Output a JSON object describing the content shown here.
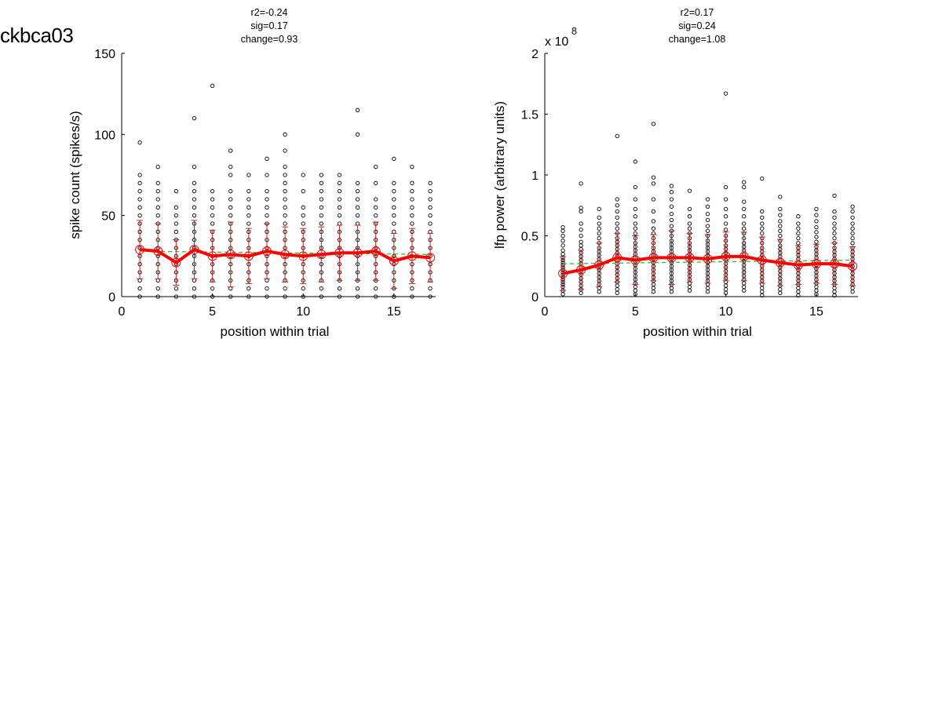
{
  "figure_title": "ckbca03",
  "colors": {
    "points": "#000000",
    "mean_line": "#ff0000",
    "errorbars": "#cc2222",
    "fit_line": "#22bb22"
  },
  "chart_data": [
    {
      "type": "scatter",
      "annotation": [
        "r2=-0.24",
        "sig=0.17",
        "change=0.93"
      ],
      "xlabel": "position within trial",
      "ylabel": "spike count (spikes/s)",
      "exponent_label": "",
      "xlim": [
        0,
        17.3
      ],
      "ylim": [
        0,
        150
      ],
      "xticks": [
        0,
        5,
        10,
        15
      ],
      "xtick_labels": [
        "0",
        "5",
        "10",
        "15"
      ],
      "yticks": [
        0,
        50,
        100,
        150
      ],
      "ytick_labels": [
        "0",
        "50",
        "100",
        "150"
      ],
      "points": [
        {
          "x": 1,
          "y": [
            0,
            5,
            10,
            15,
            20,
            25,
            30,
            35,
            40,
            45,
            50,
            55,
            60,
            65,
            70,
            75,
            95
          ]
        },
        {
          "x": 2,
          "y": [
            0,
            5,
            10,
            15,
            20,
            25,
            30,
            35,
            40,
            45,
            50,
            55,
            60,
            65,
            70,
            80
          ]
        },
        {
          "x": 3,
          "y": [
            0,
            5,
            10,
            15,
            20,
            25,
            30,
            35,
            40,
            45,
            50,
            55,
            65
          ]
        },
        {
          "x": 4,
          "y": [
            0,
            5,
            10,
            15,
            20,
            25,
            30,
            35,
            40,
            45,
            50,
            55,
            60,
            65,
            70,
            80,
            110
          ]
        },
        {
          "x": 5,
          "y": [
            0,
            5,
            10,
            15,
            20,
            25,
            30,
            35,
            40,
            45,
            50,
            55,
            60,
            65,
            130
          ]
        },
        {
          "x": 6,
          "y": [
            0,
            5,
            10,
            15,
            20,
            25,
            30,
            35,
            40,
            45,
            50,
            55,
            60,
            65,
            75,
            80,
            90
          ]
        },
        {
          "x": 7,
          "y": [
            0,
            5,
            10,
            15,
            20,
            25,
            30,
            35,
            40,
            45,
            50,
            55,
            60,
            65,
            75
          ]
        },
        {
          "x": 8,
          "y": [
            0,
            5,
            10,
            15,
            20,
            25,
            30,
            35,
            40,
            45,
            50,
            55,
            60,
            65,
            75,
            85
          ]
        },
        {
          "x": 9,
          "y": [
            0,
            5,
            10,
            15,
            20,
            25,
            30,
            35,
            40,
            45,
            50,
            55,
            60,
            65,
            70,
            75,
            80,
            90,
            100
          ]
        },
        {
          "x": 10,
          "y": [
            0,
            5,
            10,
            15,
            20,
            25,
            30,
            35,
            40,
            45,
            50,
            55,
            65,
            75
          ]
        },
        {
          "x": 11,
          "y": [
            0,
            5,
            10,
            15,
            20,
            25,
            30,
            35,
            40,
            45,
            50,
            55,
            60,
            65,
            70,
            75
          ]
        },
        {
          "x": 12,
          "y": [
            0,
            5,
            10,
            15,
            20,
            25,
            30,
            35,
            40,
            45,
            50,
            55,
            60,
            65,
            70,
            75
          ]
        },
        {
          "x": 13,
          "y": [
            0,
            5,
            10,
            15,
            20,
            25,
            30,
            35,
            40,
            45,
            50,
            55,
            60,
            65,
            70,
            100,
            115
          ]
        },
        {
          "x": 14,
          "y": [
            0,
            5,
            10,
            15,
            20,
            25,
            30,
            35,
            40,
            45,
            50,
            55,
            60,
            70,
            80
          ]
        },
        {
          "x": 15,
          "y": [
            0,
            5,
            10,
            15,
            20,
            25,
            30,
            35,
            40,
            45,
            50,
            55,
            60,
            65,
            70,
            85
          ]
        },
        {
          "x": 16,
          "y": [
            0,
            5,
            10,
            15,
            20,
            25,
            30,
            35,
            40,
            45,
            50,
            55,
            60,
            65,
            70,
            80
          ]
        },
        {
          "x": 17,
          "y": [
            0,
            5,
            10,
            15,
            20,
            25,
            30,
            35,
            40,
            45,
            50,
            55,
            60,
            65,
            70
          ]
        }
      ],
      "mean": [
        29,
        28,
        21,
        29,
        25,
        26,
        25,
        28,
        26,
        25,
        26,
        27,
        27,
        28,
        22,
        25,
        24
      ],
      "error": [
        18,
        17,
        14,
        18,
        16,
        20,
        17,
        17,
        17,
        17,
        17,
        17,
        17,
        18,
        17,
        17,
        15
      ],
      "fit": {
        "x": [
          1,
          17
        ],
        "y": [
          28,
          26
        ]
      }
    },
    {
      "type": "scatter",
      "annotation": [
        "r2=0.17",
        "sig=0.24",
        "change=1.08"
      ],
      "xlabel": "position within trial",
      "ylabel": "lfp power (arbitrary units)",
      "exponent_label": "x 10",
      "exponent_value": "8",
      "xlim": [
        0,
        17.3
      ],
      "ylim": [
        0,
        2
      ],
      "xticks": [
        0,
        5,
        10,
        15
      ],
      "xtick_labels": [
        "0",
        "5",
        "10",
        "15"
      ],
      "yticks": [
        0,
        0.5,
        1,
        1.5,
        2
      ],
      "ytick_labels": [
        "0",
        "0.5",
        "1",
        "1.5",
        "2"
      ],
      "points": [
        {
          "x": 1,
          "y": [
            0.02,
            0.05,
            0.08,
            0.1,
            0.12,
            0.14,
            0.16,
            0.18,
            0.2,
            0.22,
            0.24,
            0.26,
            0.28,
            0.3,
            0.32,
            0.35,
            0.38,
            0.42,
            0.46,
            0.5,
            0.54,
            0.57
          ]
        },
        {
          "x": 2,
          "y": [
            0.03,
            0.06,
            0.09,
            0.12,
            0.15,
            0.18,
            0.21,
            0.24,
            0.27,
            0.3,
            0.33,
            0.36,
            0.39,
            0.42,
            0.45,
            0.5,
            0.55,
            0.6,
            0.7,
            0.73,
            0.93
          ]
        },
        {
          "x": 3,
          "y": [
            0.04,
            0.07,
            0.1,
            0.13,
            0.16,
            0.19,
            0.22,
            0.25,
            0.28,
            0.31,
            0.34,
            0.37,
            0.4,
            0.44,
            0.48,
            0.52,
            0.56,
            0.6,
            0.65,
            0.72
          ]
        },
        {
          "x": 4,
          "y": [
            0.03,
            0.06,
            0.09,
            0.12,
            0.15,
            0.18,
            0.21,
            0.24,
            0.27,
            0.3,
            0.33,
            0.36,
            0.39,
            0.42,
            0.45,
            0.48,
            0.52,
            0.56,
            0.6,
            0.65,
            0.7,
            0.75,
            0.8,
            1.32
          ]
        },
        {
          "x": 5,
          "y": [
            0.02,
            0.05,
            0.08,
            0.11,
            0.14,
            0.17,
            0.2,
            0.23,
            0.26,
            0.29,
            0.32,
            0.35,
            0.38,
            0.41,
            0.44,
            0.48,
            0.52,
            0.56,
            0.6,
            0.66,
            0.72,
            0.8,
            0.9,
            1.11
          ]
        },
        {
          "x": 6,
          "y": [
            0.04,
            0.07,
            0.1,
            0.13,
            0.16,
            0.19,
            0.22,
            0.25,
            0.28,
            0.31,
            0.34,
            0.37,
            0.4,
            0.44,
            0.48,
            0.52,
            0.56,
            0.62,
            0.7,
            0.8,
            0.93,
            0.98,
            1.42
          ]
        },
        {
          "x": 7,
          "y": [
            0.04,
            0.07,
            0.1,
            0.13,
            0.16,
            0.19,
            0.22,
            0.25,
            0.28,
            0.31,
            0.34,
            0.37,
            0.4,
            0.43,
            0.46,
            0.5,
            0.54,
            0.58,
            0.63,
            0.68,
            0.74,
            0.8,
            0.86,
            0.91
          ]
        },
        {
          "x": 8,
          "y": [
            0.05,
            0.08,
            0.11,
            0.14,
            0.17,
            0.2,
            0.23,
            0.26,
            0.29,
            0.32,
            0.35,
            0.38,
            0.41,
            0.44,
            0.48,
            0.52,
            0.56,
            0.6,
            0.66,
            0.72,
            0.87
          ]
        },
        {
          "x": 9,
          "y": [
            0.04,
            0.07,
            0.1,
            0.13,
            0.16,
            0.19,
            0.22,
            0.25,
            0.28,
            0.31,
            0.34,
            0.37,
            0.4,
            0.43,
            0.46,
            0.5,
            0.54,
            0.58,
            0.63,
            0.68,
            0.74,
            0.8
          ]
        },
        {
          "x": 10,
          "y": [
            0.03,
            0.06,
            0.09,
            0.12,
            0.15,
            0.18,
            0.21,
            0.24,
            0.27,
            0.3,
            0.33,
            0.36,
            0.39,
            0.42,
            0.46,
            0.5,
            0.55,
            0.6,
            0.66,
            0.72,
            0.8,
            0.9,
            1.67
          ]
        },
        {
          "x": 11,
          "y": [
            0.05,
            0.08,
            0.11,
            0.14,
            0.17,
            0.2,
            0.23,
            0.26,
            0.29,
            0.32,
            0.35,
            0.38,
            0.41,
            0.44,
            0.48,
            0.52,
            0.56,
            0.6,
            0.66,
            0.72,
            0.78,
            0.9,
            0.94
          ]
        },
        {
          "x": 12,
          "y": [
            0.01,
            0.04,
            0.07,
            0.1,
            0.13,
            0.16,
            0.19,
            0.22,
            0.25,
            0.28,
            0.31,
            0.34,
            0.37,
            0.4,
            0.44,
            0.48,
            0.52,
            0.56,
            0.6,
            0.65,
            0.7,
            0.97
          ]
        },
        {
          "x": 13,
          "y": [
            0.03,
            0.06,
            0.09,
            0.12,
            0.15,
            0.18,
            0.21,
            0.24,
            0.27,
            0.3,
            0.33,
            0.36,
            0.39,
            0.42,
            0.46,
            0.5,
            0.54,
            0.58,
            0.62,
            0.67,
            0.72,
            0.82
          ]
        },
        {
          "x": 14,
          "y": [
            0.01,
            0.04,
            0.07,
            0.1,
            0.13,
            0.16,
            0.19,
            0.22,
            0.25,
            0.28,
            0.31,
            0.34,
            0.37,
            0.4,
            0.44,
            0.48,
            0.52,
            0.56,
            0.6,
            0.66
          ]
        },
        {
          "x": 15,
          "y": [
            0.02,
            0.05,
            0.08,
            0.11,
            0.14,
            0.17,
            0.2,
            0.23,
            0.26,
            0.29,
            0.32,
            0.35,
            0.38,
            0.41,
            0.45,
            0.49,
            0.53,
            0.57,
            0.62,
            0.67,
            0.72
          ]
        },
        {
          "x": 16,
          "y": [
            0.01,
            0.04,
            0.07,
            0.1,
            0.13,
            0.16,
            0.19,
            0.22,
            0.25,
            0.28,
            0.31,
            0.34,
            0.37,
            0.4,
            0.44,
            0.48,
            0.52,
            0.56,
            0.6,
            0.65,
            0.7,
            0.83
          ]
        },
        {
          "x": 17,
          "y": [
            0.04,
            0.07,
            0.1,
            0.13,
            0.16,
            0.19,
            0.22,
            0.25,
            0.28,
            0.31,
            0.34,
            0.37,
            0.4,
            0.44,
            0.48,
            0.52,
            0.56,
            0.6,
            0.65,
            0.7,
            0.74
          ]
        }
      ],
      "mean": [
        0.19,
        0.22,
        0.26,
        0.32,
        0.3,
        0.32,
        0.32,
        0.32,
        0.31,
        0.33,
        0.33,
        0.3,
        0.28,
        0.26,
        0.27,
        0.27,
        0.25
      ],
      "error": [
        0.14,
        0.16,
        0.18,
        0.2,
        0.2,
        0.19,
        0.22,
        0.2,
        0.2,
        0.2,
        0.2,
        0.19,
        0.19,
        0.16,
        0.16,
        0.17,
        0.16
      ],
      "fit": {
        "x": [
          1,
          17
        ],
        "y": [
          0.27,
          0.3
        ]
      }
    }
  ]
}
